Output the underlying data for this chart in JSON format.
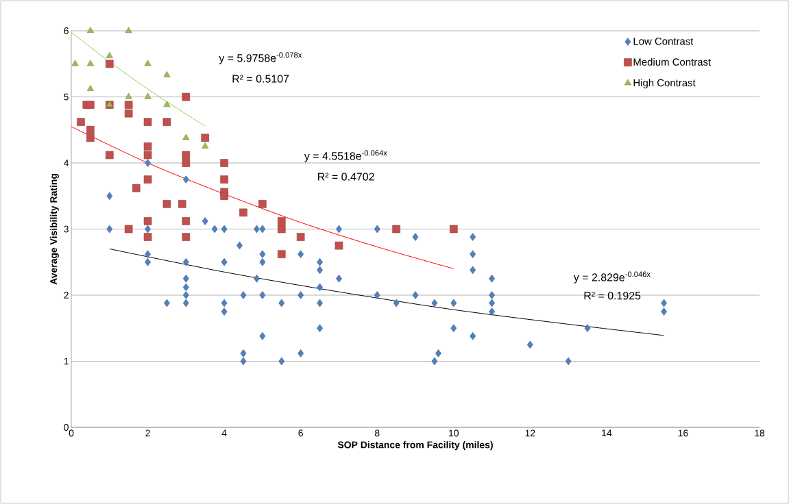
{
  "chart_data": {
    "type": "scatter",
    "xlabel": "SOP Distance from Facility (miles)",
    "ylabel": "Average Visibility Rating",
    "xlim": [
      0,
      18
    ],
    "xticks": [
      0,
      2,
      4,
      6,
      8,
      10,
      12,
      14,
      16,
      18
    ],
    "ylim": [
      0,
      6
    ],
    "yticks": [
      0,
      1,
      2,
      3,
      4,
      5,
      6
    ],
    "grid": "y",
    "legend": "top right",
    "series": [
      {
        "name": "Low Contrast",
        "color": "#4f81bd",
        "marker": "diamond",
        "x": [
          1,
          1,
          2,
          2,
          2,
          2,
          2.5,
          3,
          3,
          3,
          3,
          3,
          3,
          3.5,
          3.75,
          4,
          4,
          4,
          4,
          4.4,
          4.5,
          4.5,
          4.5,
          4.85,
          4.85,
          5,
          5,
          5,
          5,
          5,
          5.5,
          5.5,
          6,
          6,
          6,
          6.5,
          6.5,
          6.5,
          6.5,
          6.5,
          7,
          7,
          8,
          8,
          8.5,
          9,
          9,
          9.5,
          9.5,
          9.6,
          10,
          10,
          10.5,
          10.5,
          10.5,
          10.5,
          11,
          11,
          11,
          11,
          12,
          13,
          13.5,
          15.5,
          15.5
        ],
        "values": [
          3.5,
          3.0,
          4.0,
          3.0,
          2.62,
          2.5,
          1.88,
          3.75,
          2.5,
          2.25,
          2.12,
          2.0,
          1.88,
          3.12,
          3.0,
          3.0,
          2.5,
          1.88,
          1.75,
          2.75,
          2.0,
          1.12,
          1.0,
          3.0,
          2.25,
          3.0,
          2.62,
          2.5,
          2.0,
          1.38,
          1.88,
          1.0,
          2.62,
          2.0,
          1.12,
          2.5,
          2.38,
          2.12,
          1.88,
          1.5,
          3.0,
          2.25,
          3.0,
          2.0,
          1.88,
          2.88,
          2.0,
          1.88,
          1.0,
          1.12,
          1.88,
          1.5,
          2.88,
          2.62,
          2.38,
          1.38,
          2.25,
          2.0,
          1.88,
          1.75,
          1.25,
          1.0,
          1.5,
          1.88,
          1.75
        ]
      },
      {
        "name": "Medium Contrast",
        "color": "#c0504d",
        "marker": "square",
        "x": [
          0.25,
          0.4,
          0.5,
          0.5,
          0.5,
          1,
          1,
          1,
          1.5,
          1.5,
          1.5,
          1.7,
          2,
          2,
          2,
          2,
          2,
          2,
          2.5,
          2.5,
          2.9,
          3,
          3,
          3,
          3,
          3,
          3.5,
          4,
          4,
          4,
          4,
          4.5,
          5,
          5.5,
          5.5,
          5.5,
          6,
          7,
          8.5,
          10
        ],
        "values": [
          4.62,
          4.88,
          4.88,
          4.5,
          4.38,
          5.5,
          4.88,
          4.12,
          4.88,
          4.75,
          3.0,
          3.62,
          4.62,
          4.25,
          4.12,
          3.75,
          3.12,
          2.88,
          4.62,
          3.38,
          3.38,
          5.0,
          4.12,
          4.0,
          3.12,
          2.88,
          4.38,
          4.0,
          3.75,
          3.56,
          3.5,
          3.25,
          3.38,
          3.12,
          3.0,
          2.62,
          2.88,
          2.75,
          3.0,
          3.0
        ]
      },
      {
        "name": "High Contrast",
        "color": "#9bbb59",
        "marker": "triangle",
        "x": [
          0.1,
          0.5,
          0.5,
          0.5,
          1,
          1,
          1.5,
          1.5,
          2,
          2,
          2.5,
          2.5,
          3,
          3.5
        ],
        "values": [
          5.5,
          6.0,
          5.5,
          5.12,
          5.62,
          4.88,
          6.0,
          5.0,
          5.5,
          5.0,
          5.33,
          4.88,
          4.38,
          4.25
        ]
      },
      {
        "type": "line",
        "color": "#92d050",
        "marker": "none",
        "x": [
          0,
          1,
          2,
          3,
          3.5
        ],
        "values": [
          5.98,
          5.53,
          5.12,
          4.74,
          4.56
        ]
      },
      {
        "type": "line",
        "color": "#ff0000",
        "marker": "none",
        "x": [
          0,
          2,
          4,
          6,
          8,
          10
        ],
        "values": [
          4.55,
          4.0,
          3.53,
          3.1,
          2.73,
          2.4
        ]
      },
      {
        "type": "line",
        "color": "#000000",
        "marker": "none",
        "x": [
          1,
          4,
          7,
          10,
          13,
          15.5
        ],
        "values": [
          2.7,
          2.35,
          2.05,
          1.78,
          1.56,
          1.39
        ]
      }
    ],
    "annotations": [
      "y = 5.9758e$^{-0.078x}$",
      "R² = 0.5107",
      "y = 4.5518e$^{-0.064x}$",
      "R² = 0.4702",
      "y = 2.829e$^{-0.046x}$",
      "R² = 0.1925"
    ]
  }
}
